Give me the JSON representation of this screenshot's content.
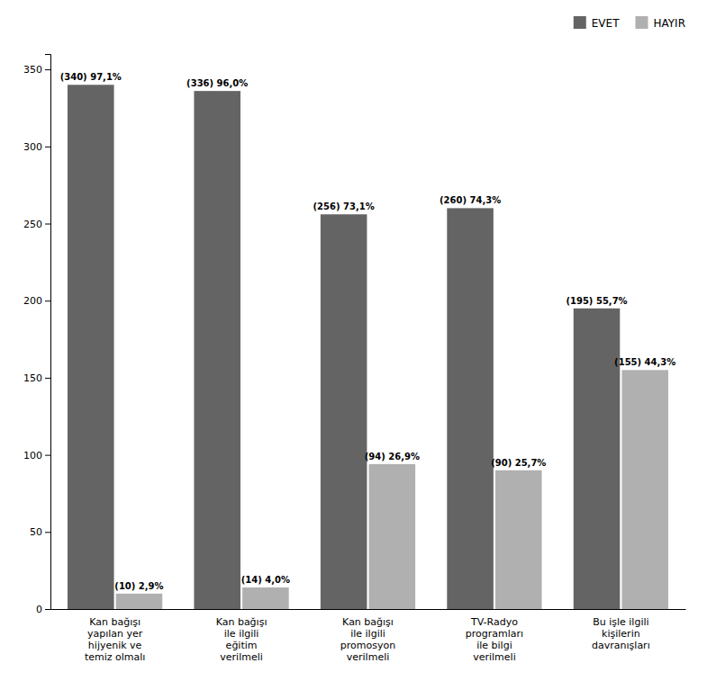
{
  "chart_data": {
    "type": "bar",
    "categories": [
      "Kan bağışı\nyapılan yer\nhijyenik ve\ntemiz olmalı",
      "Kan bağışı\nile ilgili\neğitim\nverilmeli",
      "Kan bağışı\nile ilgili\npromosyon\nverilmeli",
      "TV-Radyo\nprogramları\nile bilgi\nverilmeli",
      "Bu işle ilgili\nkişilerin\ndavranışları"
    ],
    "series": [
      {
        "name": "EVET",
        "color": "#646464",
        "values": [
          340,
          336,
          256,
          260,
          195
        ],
        "value_labels": [
          "(340) 97,1%",
          "(336) 96,0%",
          "(256) 73,1%",
          "(260) 74,3%",
          "(195) 55,7%"
        ]
      },
      {
        "name": "HAYIR",
        "color": "#b0b0b0",
        "values": [
          10,
          14,
          94,
          90,
          155
        ],
        "value_labels": [
          "(10) 2,9%",
          "(14) 4,0%",
          "(94) 26,9%",
          "(90) 25,7%",
          "(155) 44,3%"
        ]
      }
    ],
    "ylim": [
      0,
      360
    ],
    "yticks": [
      0,
      50,
      100,
      150,
      200,
      250,
      300,
      350
    ],
    "data_labels": true,
    "grid": false,
    "legend": "upper right"
  }
}
